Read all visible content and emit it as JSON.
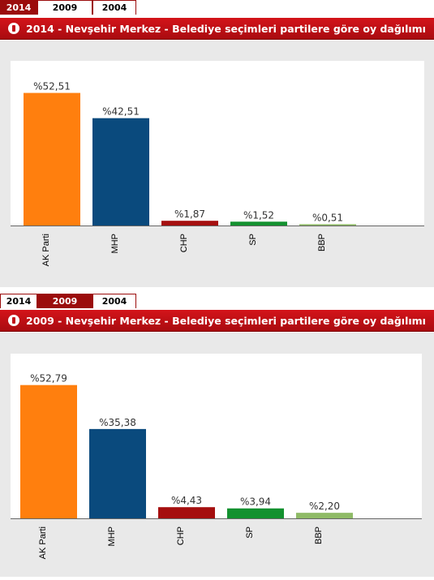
{
  "tabs": [
    "2014",
    "2009",
    "2004"
  ],
  "chart_data": [
    {
      "type": "bar",
      "title": "2014 - Nevşehir Merkez - Belediye seçimleri partilere göre oy dağılımı",
      "active_tab": "2014",
      "categories": [
        "AK Parti",
        "MHP",
        "CHP",
        "SP",
        "BBP"
      ],
      "values": [
        52.51,
        42.51,
        1.87,
        1.52,
        0.51
      ],
      "value_labels": [
        "%52,51",
        "%42,51",
        "%1,87",
        "%1,52",
        "%0,51"
      ],
      "colors": [
        "#ff7f0e",
        "#0a4a7d",
        "#a50f0f",
        "#13912f",
        "#8fbb66"
      ],
      "ylim": [
        0,
        60
      ],
      "grid": false
    },
    {
      "type": "bar",
      "title": "2009 - Nevşehir Merkez - Belediye seçimleri partilere göre oy dağılımı",
      "active_tab": "2009",
      "categories": [
        "AK Parti",
        "MHP",
        "CHP",
        "SP",
        "BBP"
      ],
      "values": [
        52.79,
        35.38,
        4.43,
        3.94,
        2.2
      ],
      "value_labels": [
        "%52,79",
        "%35,38",
        "%4,43",
        "%3,94",
        "%2,20"
      ],
      "colors": [
        "#ff7f0e",
        "#0a4a7d",
        "#a50f0f",
        "#13912f",
        "#8fbb66"
      ],
      "ylim": [
        0,
        60
      ],
      "grid": false
    }
  ]
}
